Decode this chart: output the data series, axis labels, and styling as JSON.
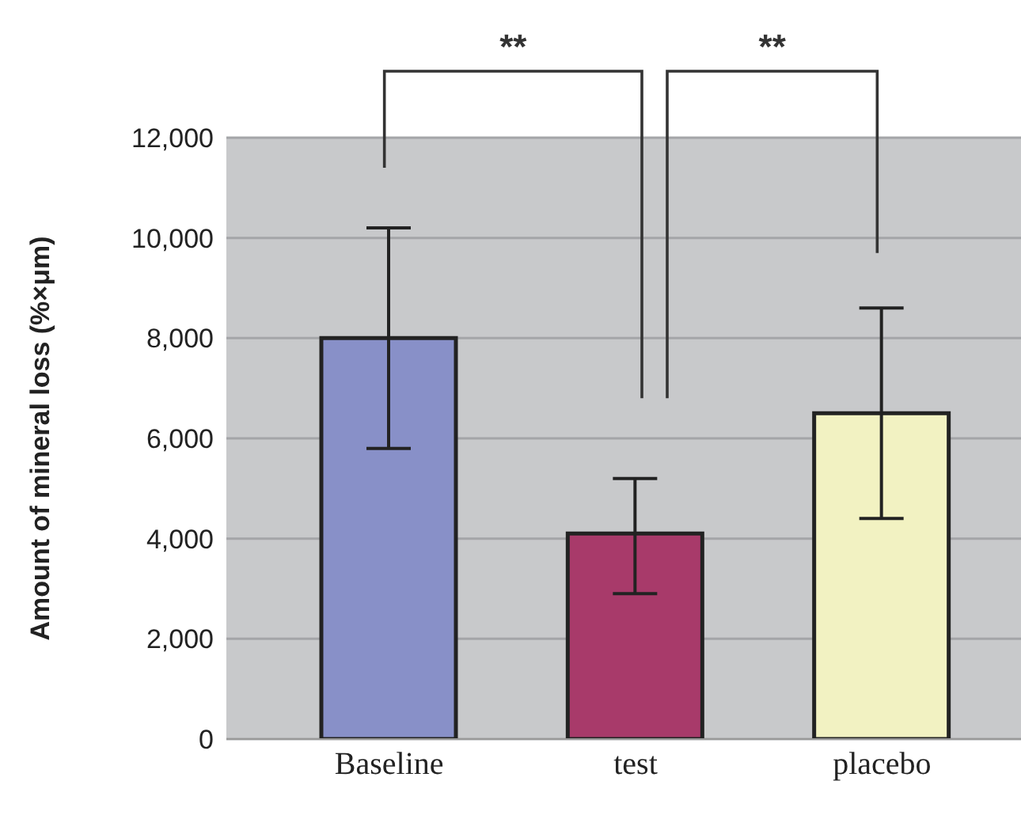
{
  "chart_data": {
    "type": "bar",
    "ylabel": "Amount of mineral loss (%×μm)",
    "categories": [
      "Baseline",
      "test",
      "placebo"
    ],
    "values": [
      8000,
      4100,
      6500
    ],
    "colors": [
      "#8890c8",
      "#a83a6a",
      "#f2f2c2"
    ],
    "errors": [
      [
        5800,
        10200
      ],
      [
        2900,
        5200
      ],
      [
        4400,
        8600
      ]
    ],
    "ylim": [
      0,
      12000
    ],
    "yticks": [
      {
        "value": 0,
        "label": "0"
      },
      {
        "value": 2000,
        "label": "2,000"
      },
      {
        "value": 4000,
        "label": "4,000"
      },
      {
        "value": 6000,
        "label": "6,000"
      },
      {
        "value": 8000,
        "label": "8,000"
      },
      {
        "value": 10000,
        "label": "10,000"
      },
      {
        "value": 12000,
        "label": "12,000"
      }
    ],
    "grid": "y",
    "annotations": [
      "**",
      "**"
    ]
  }
}
